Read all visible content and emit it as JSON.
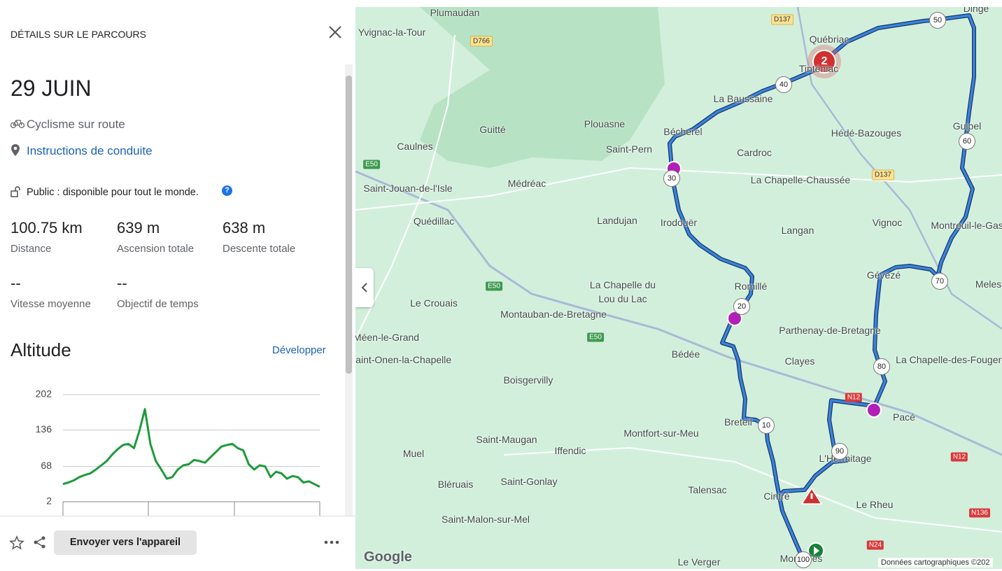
{
  "panel": {
    "title": "DÉTAILS SUR LE PARCOURS",
    "date": "29 JUIN",
    "activity": "Cyclisme sur route",
    "directions_link": "Instructions de conduite",
    "visibility": "Public : disponible pour tout le monde.",
    "help": "?",
    "stats": [
      {
        "value": "100.75 km",
        "label": "Distance"
      },
      {
        "value": "639 m",
        "label": "Ascension totale"
      },
      {
        "value": "638 m",
        "label": "Descente totale"
      },
      {
        "value": "--",
        "label": "Vitesse moyenne"
      },
      {
        "value": "--",
        "label": "Objectif de temps"
      }
    ],
    "altitude_title": "Altitude",
    "expand_link": "Développer",
    "send_button": "Envoyer vers l'appareil"
  },
  "chart_data": {
    "type": "line",
    "color": "#1e9a3a",
    "ylim": [
      2,
      202
    ],
    "yticks": [
      2,
      68,
      136,
      202
    ],
    "grid": true,
    "values": [
      35,
      38,
      42,
      48,
      52,
      55,
      62,
      70,
      78,
      90,
      100,
      108,
      110,
      102,
      135,
      175,
      110,
      78,
      62,
      45,
      48,
      62,
      70,
      72,
      80,
      78,
      75,
      85,
      95,
      105,
      108,
      110,
      102,
      98,
      72,
      62,
      70,
      68,
      48,
      58,
      55,
      45,
      50,
      48,
      38,
      40,
      35,
      30
    ]
  },
  "map": {
    "places": [
      "Dingé",
      "Plumaudan",
      "Yvignac-la-Tour",
      "Québriac",
      "Tinténiac",
      "La Baussaine",
      "Guitté",
      "Plouasne",
      "Bécherel",
      "Saint-Pern",
      "Caulnes",
      "Hédé-Bazouges",
      "Guipel",
      "Cardroc",
      "La Chapelle-Chaussée",
      "Saint-Jouan-de-l'Isle",
      "Médréac",
      "Quédillac",
      "Landujan",
      "Irodouër",
      "Langan",
      "Vignoc",
      "Montreuil-le-Gast",
      "Romillé",
      "La Chapelle du Lou du Lac",
      "Le Crouais",
      "Montauban-de-Bretagne",
      "Gévezé",
      "Melesse",
      "Parthenay-de-Bretagne",
      "Méen-le-Grand",
      "Bédée",
      "Clayes",
      "La Chapelle-des-Fougeretz",
      "Saint-Onen-la-Chapelle",
      "Boisgervilly",
      "Pacé",
      "Breteil",
      "Montfort-sur-Meu",
      "Saint-Maugan",
      "Muel",
      "Iffendic",
      "L'Hermitage",
      "Bléruais",
      "Saint-Gonlay",
      "Talensac",
      "Cintré",
      "Le Rheu",
      "Saint-Malon-sur-Mel",
      "Le Verger",
      "Mordelles"
    ],
    "road_labels": [
      "D137",
      "D766",
      "E50",
      "E50",
      "E50",
      "D137",
      "N12",
      "N12",
      "N136",
      "N24"
    ],
    "km_markers": [
      "10",
      "20",
      "30",
      "40",
      "50",
      "60",
      "70",
      "80",
      "90",
      "100"
    ],
    "cluster_badge": "2",
    "attribution": "Données cartographiques ©202",
    "logo": "Google"
  }
}
